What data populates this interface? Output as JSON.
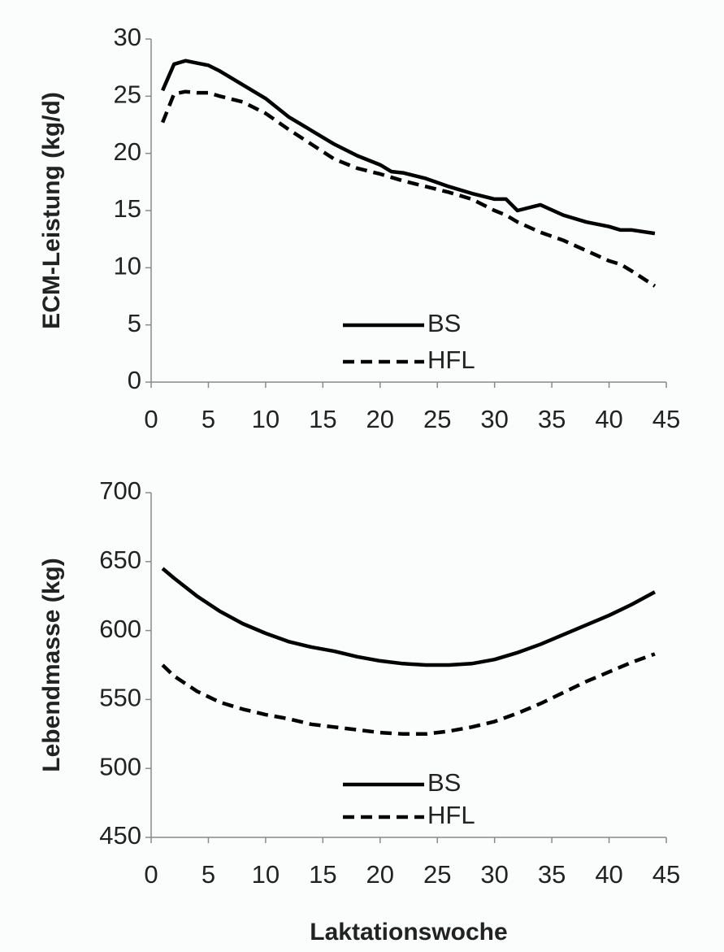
{
  "chart_data": [
    {
      "type": "line",
      "ylabel": "ECM-Leistung (kg/d)",
      "x": [
        1,
        2,
        3,
        4,
        5,
        6,
        8,
        10,
        12,
        14,
        16,
        18,
        20,
        21,
        22,
        24,
        26,
        28,
        30,
        31,
        32,
        34,
        36,
        38,
        40,
        41,
        42,
        44
      ],
      "series": [
        {
          "name": "BS",
          "color": "#000000",
          "line_style": "solid",
          "values": [
            25.5,
            27.8,
            28.1,
            27.9,
            27.7,
            27.2,
            26.0,
            24.8,
            23.2,
            22.0,
            20.8,
            19.8,
            19.0,
            18.4,
            18.3,
            17.8,
            17.1,
            16.5,
            16.0,
            16.0,
            15.0,
            15.5,
            14.6,
            14.0,
            13.6,
            13.3,
            13.3,
            13.0
          ]
        },
        {
          "name": "HFL",
          "color": "#000000",
          "line_style": "dashed",
          "values": [
            22.7,
            25.2,
            25.4,
            25.3,
            25.3,
            25.0,
            24.5,
            23.5,
            22.1,
            20.8,
            19.5,
            18.7,
            18.2,
            17.9,
            17.6,
            17.1,
            16.6,
            16.0,
            15.0,
            14.6,
            14.0,
            13.1,
            12.4,
            11.5,
            10.6,
            10.3,
            9.7,
            8.4
          ]
        }
      ],
      "xlim": [
        0,
        45
      ],
      "xticks": [
        0,
        5,
        10,
        15,
        20,
        25,
        30,
        35,
        40,
        45
      ],
      "ylim": [
        0,
        30
      ],
      "yticks": [
        0,
        5,
        10,
        15,
        20,
        25,
        30
      ],
      "grid": false,
      "legend": "bottom-center"
    },
    {
      "type": "line",
      "ylabel": "Lebendmasse (kg)",
      "xlabel": "Laktationswoche",
      "x": [
        1,
        2,
        4,
        6,
        8,
        10,
        12,
        14,
        16,
        18,
        20,
        22,
        24,
        26,
        28,
        30,
        32,
        34,
        36,
        38,
        40,
        42,
        44
      ],
      "series": [
        {
          "name": "BS",
          "color": "#000000",
          "line_style": "solid",
          "values": [
            645,
            638,
            625,
            614,
            605,
            598,
            592,
            588,
            585,
            581,
            578,
            576,
            575,
            575,
            576,
            579,
            584,
            590,
            597,
            604,
            611,
            619,
            628
          ]
        },
        {
          "name": "HFL",
          "color": "#000000",
          "line_style": "dashed",
          "values": [
            575,
            567,
            556,
            548,
            543,
            539,
            536,
            532,
            530,
            528,
            526,
            525,
            525,
            527,
            530,
            534,
            540,
            547,
            555,
            563,
            570,
            577,
            583
          ]
        }
      ],
      "xlim": [
        0,
        45
      ],
      "xticks": [
        0,
        5,
        10,
        15,
        20,
        25,
        30,
        35,
        40,
        45
      ],
      "ylim": [
        450,
        700
      ],
      "yticks": [
        450,
        500,
        550,
        600,
        650,
        700
      ],
      "grid": false,
      "legend": "bottom-center"
    }
  ]
}
